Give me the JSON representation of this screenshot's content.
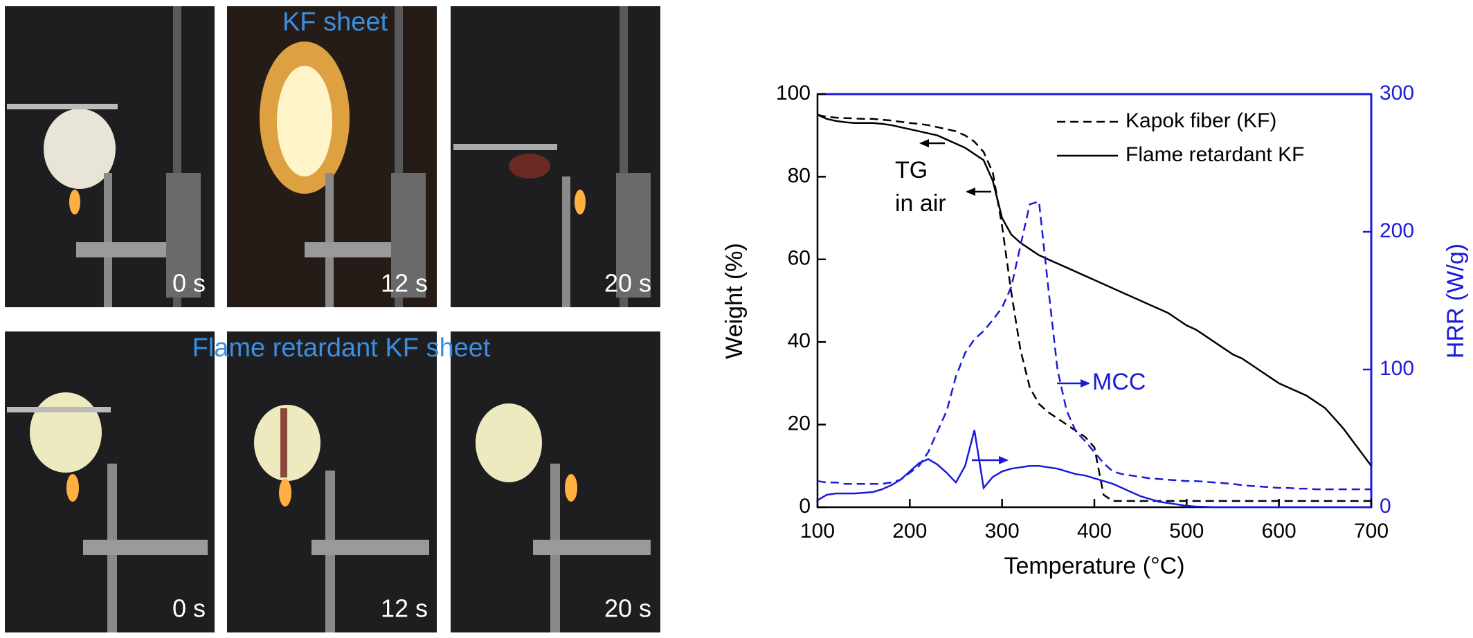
{
  "photos": {
    "top_title": "KF sheet",
    "bottom_title": "Flame retardant KF sheet",
    "top_times": [
      "0 s",
      "12 s",
      "20 s"
    ],
    "bottom_times": [
      "0 s",
      "12 s",
      "20 s"
    ]
  },
  "chart_data": {
    "type": "line",
    "xlabel": "Temperature (°C)",
    "ylabel": "Weight (%)",
    "y2label": "HRR (W/g)",
    "annotations": [
      "TG",
      "in air",
      "MCC"
    ],
    "legend": "upper right",
    "x": [
      100,
      110,
      120,
      130,
      140,
      150,
      160,
      170,
      180,
      190,
      200,
      210,
      220,
      230,
      240,
      250,
      260,
      270,
      280,
      290,
      300,
      310,
      320,
      330,
      340,
      350,
      360,
      370,
      380,
      390,
      400,
      410,
      420,
      430,
      440,
      450,
      460,
      470,
      480,
      490,
      500,
      510,
      520,
      530,
      540,
      550,
      560,
      570,
      580,
      590,
      600,
      610,
      620,
      630,
      640,
      650,
      660,
      670,
      680,
      690,
      700
    ],
    "xlim": [
      100,
      700
    ],
    "xticks": [
      100,
      200,
      300,
      400,
      500,
      600,
      700
    ],
    "ylim": [
      0,
      100
    ],
    "yticks": [
      0,
      20,
      40,
      60,
      80,
      100
    ],
    "y2lim": [
      0,
      300
    ],
    "y2ticks": [
      0,
      100,
      200,
      300
    ],
    "series": [
      {
        "name": "Kapok fiber (KF)",
        "color": "#000000",
        "dash": true,
        "values": [
          95,
          94.5,
          94.3,
          94.2,
          94.1,
          94,
          94,
          93.8,
          93.6,
          93.3,
          93,
          92.8,
          92.5,
          92,
          91.5,
          91,
          90,
          88.5,
          86,
          81,
          68,
          52,
          38,
          29,
          25,
          23,
          21.5,
          20,
          18.5,
          17,
          14.5,
          3,
          1.5,
          1.5,
          1.5,
          1.5,
          1.5,
          1.5,
          1.5,
          1.5,
          1.5,
          1.5,
          1.5,
          1.5,
          1.5,
          1.5,
          1.5,
          1.5,
          1.5,
          1.5,
          1.5,
          1.5,
          1.5,
          1.5,
          1.5,
          1.5,
          1.5,
          1.5,
          1.5,
          1.5,
          1.5
        ]
      },
      {
        "name": "Flame retardant KF",
        "color": "#000000",
        "dash": false,
        "values": [
          95,
          94,
          93.5,
          93.2,
          93,
          93,
          93,
          92.8,
          92.5,
          92,
          91.5,
          91,
          90.5,
          90,
          89,
          88,
          87,
          85.5,
          84,
          79,
          70,
          66,
          64,
          62.5,
          61,
          60,
          59,
          58,
          57,
          56,
          55,
          54,
          53,
          52,
          51,
          50,
          49,
          48,
          47,
          45.5,
          44,
          43,
          41.5,
          40,
          38.5,
          37,
          36,
          34.5,
          33,
          31.5,
          30,
          29,
          28,
          27,
          25.5,
          24,
          21.5,
          19,
          16,
          13,
          10
        ]
      },
      {
        "color": "#1a1adc",
        "dash": true,
        "axis": "y2",
        "values": [
          19,
          18,
          18,
          17,
          17,
          17,
          17,
          17,
          18,
          20,
          25,
          30,
          40,
          55,
          70,
          95,
          112,
          122,
          128,
          136,
          145,
          160,
          190,
          220,
          222,
          160,
          100,
          70,
          55,
          48,
          40,
          32,
          26,
          24,
          23,
          22,
          21,
          20.5,
          20,
          19.5,
          19,
          19,
          18.5,
          18,
          17.5,
          17,
          16,
          15.5,
          15,
          14.5,
          14,
          14,
          13.5,
          13.5,
          13,
          13,
          13,
          13,
          13,
          13,
          13
        ]
      },
      {
        "color": "#1a1adc",
        "dash": false,
        "axis": "y2",
        "values": [
          5,
          9,
          10,
          10,
          10,
          10.5,
          11,
          13,
          16,
          20,
          26,
          32,
          35,
          31,
          25,
          18,
          30,
          56,
          14,
          22,
          26,
          28,
          29,
          30,
          30,
          29,
          28,
          26,
          24,
          23,
          21,
          19,
          17,
          14,
          11,
          8,
          6,
          4,
          3,
          2,
          1,
          0.5,
          0.3,
          0,
          0,
          0,
          0,
          0,
          0,
          0,
          0,
          0,
          0,
          0,
          0,
          0,
          0,
          0,
          0,
          0,
          0
        ]
      }
    ]
  }
}
